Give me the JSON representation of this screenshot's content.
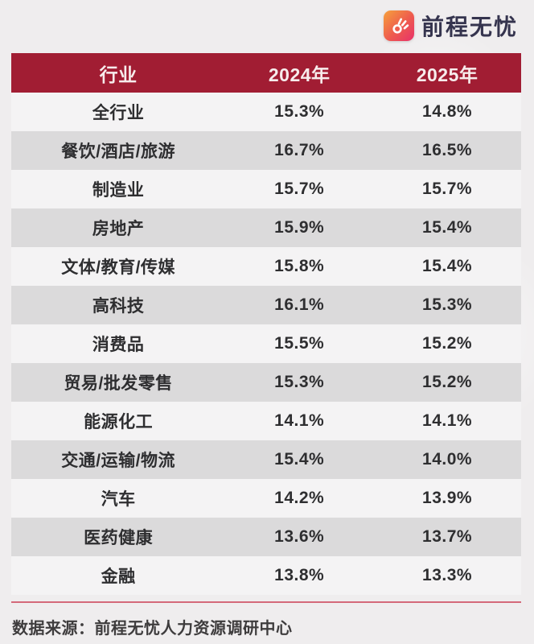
{
  "brand": {
    "name": "前程无忧",
    "icon": "hand-logo-icon"
  },
  "table": {
    "headers": [
      "行业",
      "2024年",
      "2025年"
    ],
    "rows": [
      [
        "全行业",
        "15.3%",
        "14.8%"
      ],
      [
        "餐饮/酒店/旅游",
        "16.7%",
        "16.5%"
      ],
      [
        "制造业",
        "15.7%",
        "15.7%"
      ],
      [
        "房地产",
        "15.9%",
        "15.4%"
      ],
      [
        "文体/教育/传媒",
        "15.8%",
        "15.4%"
      ],
      [
        "高科技",
        "16.1%",
        "15.3%"
      ],
      [
        "消费品",
        "15.5%",
        "15.2%"
      ],
      [
        "贸易/批发零售",
        "15.3%",
        "15.2%"
      ],
      [
        "能源化工",
        "14.1%",
        "14.1%"
      ],
      [
        "交通/运输/物流",
        "15.4%",
        "14.0%"
      ],
      [
        "汽车",
        "14.2%",
        "13.9%"
      ],
      [
        "医药健康",
        "13.6%",
        "13.7%"
      ],
      [
        "金融",
        "13.8%",
        "13.3%"
      ]
    ]
  },
  "footer": {
    "source": "数据来源：前程无忧人力资源调研中心"
  },
  "colors": {
    "header_bg": "#a11d33",
    "row_gray": "#dbdadb",
    "row_light": "#f4f3f4",
    "divider": "#d4697a",
    "logo_gradient_start": "#f6a13c",
    "logo_gradient_end": "#e8316b",
    "brand_text": "#35344e"
  },
  "chart_data": {
    "type": "table",
    "title": "",
    "columns": [
      "行业",
      "2024年",
      "2025年"
    ],
    "categories": [
      "全行业",
      "餐饮/酒店/旅游",
      "制造业",
      "房地产",
      "文体/教育/传媒",
      "高科技",
      "消费品",
      "贸易/批发零售",
      "能源化工",
      "交通/运输/物流",
      "汽车",
      "医药健康",
      "金融"
    ],
    "series": [
      {
        "name": "2024年",
        "values": [
          15.3,
          16.7,
          15.7,
          15.9,
          15.8,
          16.1,
          15.5,
          15.3,
          14.1,
          15.4,
          14.2,
          13.6,
          13.8
        ]
      },
      {
        "name": "2025年",
        "values": [
          14.8,
          16.5,
          15.7,
          15.4,
          15.4,
          15.3,
          15.2,
          15.2,
          14.1,
          14.0,
          13.9,
          13.7,
          13.3
        ]
      }
    ],
    "value_unit": "%",
    "source_note": "数据来源：前程无忧人力资源调研中心"
  }
}
